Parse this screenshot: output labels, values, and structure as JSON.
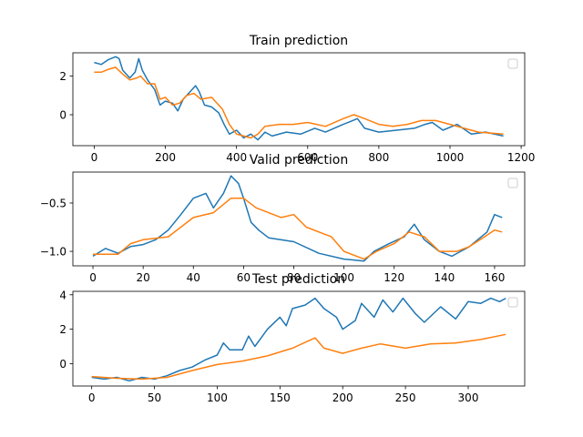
{
  "chart_data": [
    {
      "type": "line",
      "title": "Train prediction",
      "xlim": [
        -60,
        1210
      ],
      "ylim": [
        -1.6,
        3.2
      ],
      "xticks": [
        0,
        200,
        400,
        600,
        800,
        1000,
        1200
      ],
      "yticks": [
        0,
        2
      ],
      "legend": "top-right (empty)",
      "series": [
        {
          "color": "#1f77b4",
          "points": [
            [
              0,
              2.7
            ],
            [
              20,
              2.6
            ],
            [
              40,
              2.85
            ],
            [
              60,
              3.0
            ],
            [
              70,
              2.9
            ],
            [
              80,
              2.3
            ],
            [
              100,
              1.9
            ],
            [
              115,
              2.2
            ],
            [
              125,
              2.9
            ],
            [
              135,
              2.3
            ],
            [
              150,
              1.8
            ],
            [
              170,
              1.3
            ],
            [
              185,
              0.5
            ],
            [
              200,
              0.7
            ],
            [
              220,
              0.6
            ],
            [
              235,
              0.2
            ],
            [
              250,
              0.8
            ],
            [
              270,
              1.2
            ],
            [
              285,
              1.5
            ],
            [
              295,
              1.2
            ],
            [
              310,
              0.5
            ],
            [
              330,
              0.4
            ],
            [
              350,
              0.1
            ],
            [
              365,
              -0.5
            ],
            [
              380,
              -1.0
            ],
            [
              400,
              -0.8
            ],
            [
              420,
              -1.2
            ],
            [
              440,
              -1.0
            ],
            [
              460,
              -1.3
            ],
            [
              480,
              -0.9
            ],
            [
              500,
              -1.1
            ],
            [
              540,
              -0.9
            ],
            [
              580,
              -1.0
            ],
            [
              620,
              -0.7
            ],
            [
              650,
              -0.9
            ],
            [
              700,
              -0.5
            ],
            [
              740,
              -0.2
            ],
            [
              760,
              -0.7
            ],
            [
              800,
              -0.9
            ],
            [
              850,
              -0.8
            ],
            [
              900,
              -0.7
            ],
            [
              930,
              -0.5
            ],
            [
              950,
              -0.4
            ],
            [
              980,
              -0.8
            ],
            [
              1020,
              -0.5
            ],
            [
              1060,
              -1.0
            ],
            [
              1100,
              -0.9
            ],
            [
              1150,
              -1.1
            ]
          ]
        },
        {
          "color": "#ff7f0e",
          "points": [
            [
              0,
              2.2
            ],
            [
              20,
              2.2
            ],
            [
              40,
              2.35
            ],
            [
              60,
              2.45
            ],
            [
              80,
              2.1
            ],
            [
              100,
              1.8
            ],
            [
              120,
              1.9
            ],
            [
              130,
              2.0
            ],
            [
              150,
              1.6
            ],
            [
              170,
              1.6
            ],
            [
              185,
              0.8
            ],
            [
              200,
              0.9
            ],
            [
              220,
              0.5
            ],
            [
              240,
              0.6
            ],
            [
              260,
              1.0
            ],
            [
              280,
              1.1
            ],
            [
              300,
              0.8
            ],
            [
              330,
              0.9
            ],
            [
              360,
              0.3
            ],
            [
              380,
              -0.5
            ],
            [
              400,
              -1.0
            ],
            [
              420,
              -1.1
            ],
            [
              440,
              -1.2
            ],
            [
              460,
              -1.0
            ],
            [
              480,
              -0.6
            ],
            [
              520,
              -0.5
            ],
            [
              560,
              -0.5
            ],
            [
              600,
              -0.4
            ],
            [
              650,
              -0.6
            ],
            [
              700,
              -0.2
            ],
            [
              730,
              0.0
            ],
            [
              760,
              -0.2
            ],
            [
              800,
              -0.5
            ],
            [
              840,
              -0.6
            ],
            [
              880,
              -0.5
            ],
            [
              920,
              -0.3
            ],
            [
              960,
              -0.3
            ],
            [
              1000,
              -0.5
            ],
            [
              1040,
              -0.7
            ],
            [
              1080,
              -0.9
            ],
            [
              1150,
              -1.0
            ]
          ]
        }
      ]
    },
    {
      "type": "line",
      "title": "Valid prediction",
      "xlim": [
        -8,
        172
      ],
      "ylim": [
        -1.15,
        -0.18
      ],
      "xticks": [
        0,
        20,
        40,
        60,
        80,
        100,
        120,
        140,
        160
      ],
      "yticks": [
        -1.0,
        -0.5
      ],
      "legend": "top-right (empty)",
      "series": [
        {
          "color": "#1f77b4",
          "points": [
            [
              0,
              -1.05
            ],
            [
              5,
              -0.97
            ],
            [
              10,
              -1.02
            ],
            [
              15,
              -0.95
            ],
            [
              20,
              -0.93
            ],
            [
              25,
              -0.88
            ],
            [
              30,
              -0.78
            ],
            [
              35,
              -0.62
            ],
            [
              40,
              -0.45
            ],
            [
              45,
              -0.4
            ],
            [
              48,
              -0.55
            ],
            [
              52,
              -0.4
            ],
            [
              55,
              -0.22
            ],
            [
              58,
              -0.3
            ],
            [
              60,
              -0.45
            ],
            [
              63,
              -0.7
            ],
            [
              66,
              -0.78
            ],
            [
              70,
              -0.86
            ],
            [
              80,
              -0.9
            ],
            [
              90,
              -1.02
            ],
            [
              100,
              -1.08
            ],
            [
              108,
              -1.1
            ],
            [
              112,
              -1.0
            ],
            [
              118,
              -0.92
            ],
            [
              124,
              -0.85
            ],
            [
              128,
              -0.72
            ],
            [
              132,
              -0.88
            ],
            [
              138,
              -1.0
            ],
            [
              143,
              -1.05
            ],
            [
              150,
              -0.95
            ],
            [
              157,
              -0.8
            ],
            [
              160,
              -0.62
            ],
            [
              163,
              -0.65
            ]
          ]
        },
        {
          "color": "#ff7f0e",
          "points": [
            [
              0,
              -1.03
            ],
            [
              10,
              -1.03
            ],
            [
              15,
              -0.92
            ],
            [
              20,
              -0.88
            ],
            [
              30,
              -0.85
            ],
            [
              40,
              -0.65
            ],
            [
              48,
              -0.6
            ],
            [
              55,
              -0.45
            ],
            [
              60,
              -0.45
            ],
            [
              65,
              -0.55
            ],
            [
              75,
              -0.65
            ],
            [
              80,
              -0.62
            ],
            [
              85,
              -0.75
            ],
            [
              95,
              -0.85
            ],
            [
              100,
              -1.0
            ],
            [
              108,
              -1.08
            ],
            [
              113,
              -1.0
            ],
            [
              120,
              -0.92
            ],
            [
              126,
              -0.8
            ],
            [
              132,
              -0.85
            ],
            [
              138,
              -1.0
            ],
            [
              145,
              -1.0
            ],
            [
              150,
              -0.95
            ],
            [
              156,
              -0.85
            ],
            [
              160,
              -0.78
            ],
            [
              163,
              -0.8
            ]
          ]
        }
      ]
    },
    {
      "type": "line",
      "title": "Test prediction",
      "xlim": [
        -15,
        345
      ],
      "ylim": [
        -1.3,
        4.2
      ],
      "xticks": [
        0,
        50,
        100,
        150,
        200,
        250,
        300
      ],
      "yticks": [
        0,
        2,
        4
      ],
      "legend": "top-right (empty)",
      "series": [
        {
          "color": "#1f77b4",
          "points": [
            [
              0,
              -0.8
            ],
            [
              10,
              -0.9
            ],
            [
              20,
              -0.8
            ],
            [
              30,
              -1.0
            ],
            [
              40,
              -0.8
            ],
            [
              50,
              -0.9
            ],
            [
              60,
              -0.7
            ],
            [
              70,
              -0.4
            ],
            [
              80,
              -0.2
            ],
            [
              90,
              0.2
            ],
            [
              100,
              0.5
            ],
            [
              105,
              1.2
            ],
            [
              110,
              0.8
            ],
            [
              120,
              0.8
            ],
            [
              125,
              1.6
            ],
            [
              130,
              1.0
            ],
            [
              135,
              1.5
            ],
            [
              140,
              2.0
            ],
            [
              150,
              2.7
            ],
            [
              155,
              2.2
            ],
            [
              160,
              3.2
            ],
            [
              170,
              3.4
            ],
            [
              178,
              3.8
            ],
            [
              185,
              3.2
            ],
            [
              195,
              2.7
            ],
            [
              200,
              2.0
            ],
            [
              210,
              2.5
            ],
            [
              215,
              3.5
            ],
            [
              225,
              2.7
            ],
            [
              232,
              3.7
            ],
            [
              240,
              3.0
            ],
            [
              248,
              3.8
            ],
            [
              258,
              2.9
            ],
            [
              265,
              2.4
            ],
            [
              278,
              3.3
            ],
            [
              290,
              2.6
            ],
            [
              300,
              3.6
            ],
            [
              310,
              3.5
            ],
            [
              318,
              3.8
            ],
            [
              325,
              3.6
            ],
            [
              330,
              3.8
            ]
          ]
        },
        {
          "color": "#ff7f0e",
          "points": [
            [
              0,
              -0.75
            ],
            [
              20,
              -0.85
            ],
            [
              40,
              -0.9
            ],
            [
              60,
              -0.8
            ],
            [
              80,
              -0.4
            ],
            [
              100,
              -0.05
            ],
            [
              120,
              0.15
            ],
            [
              140,
              0.45
            ],
            [
              160,
              0.9
            ],
            [
              178,
              1.5
            ],
            [
              185,
              0.9
            ],
            [
              200,
              0.6
            ],
            [
              215,
              0.9
            ],
            [
              230,
              1.15
            ],
            [
              250,
              0.9
            ],
            [
              270,
              1.15
            ],
            [
              290,
              1.2
            ],
            [
              310,
              1.4
            ],
            [
              330,
              1.7
            ]
          ]
        }
      ]
    }
  ]
}
